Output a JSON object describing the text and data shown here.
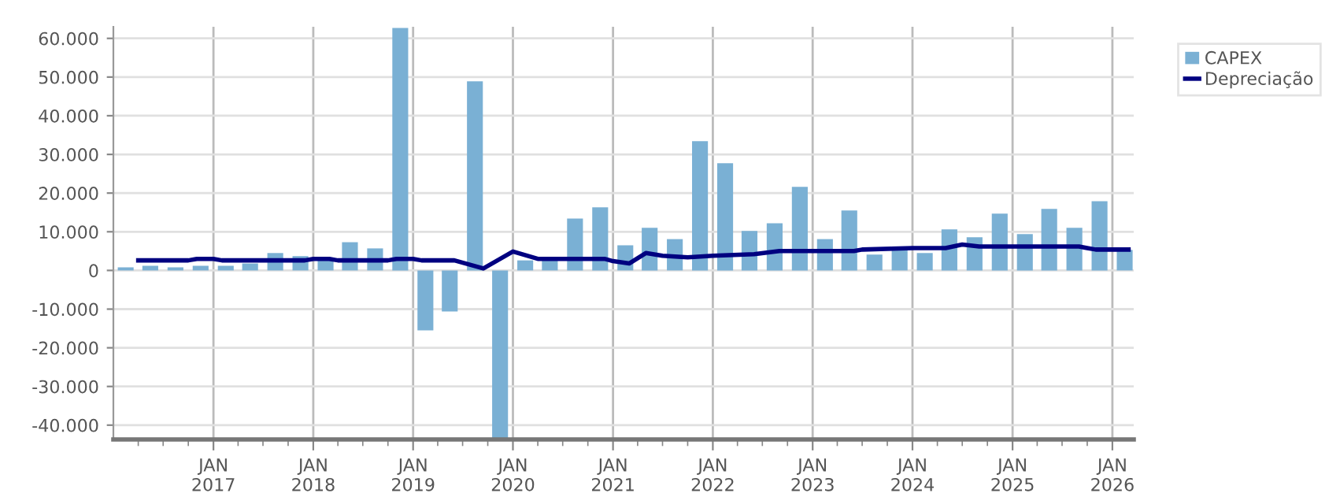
{
  "chart_data": {
    "type": "bar",
    "x": [
      "2016-02-15",
      "2016-05-15",
      "2016-08-15",
      "2016-11-15",
      "2017-02-15",
      "2017-05-15",
      "2017-08-15",
      "2017-11-15",
      "2018-02-15",
      "2018-05-15",
      "2018-08-15",
      "2018-11-15",
      "2019-02-15",
      "2019-05-15",
      "2019-08-15",
      "2019-11-15",
      "2020-02-15",
      "2020-05-15",
      "2020-08-15",
      "2020-11-15",
      "2021-02-15",
      "2021-05-15",
      "2021-08-15",
      "2021-11-15",
      "2022-02-15",
      "2022-05-15",
      "2022-08-15",
      "2022-11-15",
      "2023-02-15",
      "2023-05-15",
      "2023-08-15",
      "2023-11-15",
      "2024-02-15",
      "2024-05-15",
      "2024-08-15",
      "2024-11-15",
      "2025-02-15",
      "2025-05-15",
      "2025-08-15",
      "2025-11-15",
      "2026-02-15"
    ],
    "series": [
      {
        "name": "CAPEX",
        "color": "#7ab0d4",
        "values": [
          800,
          1200,
          800,
          1200,
          1200,
          1800,
          4500,
          3700,
          3000,
          7300,
          5700,
          62700,
          -15500,
          -10600,
          48900,
          -43700,
          2600,
          3000,
          13400,
          16300,
          6500,
          11000,
          8100,
          33400,
          27700,
          10200,
          12200,
          21600,
          8100,
          15500,
          4100,
          5300,
          4500,
          10600,
          8600,
          14700,
          9400,
          15900,
          11000,
          17900,
          5300
        ]
      },
      {
        "name": "Depreciação",
        "type": "line",
        "color": "#000080",
        "x": [
          "2016-04",
          "2016-10",
          "2016-11",
          "2017-01",
          "2017-02",
          "2017-12",
          "2018-01",
          "2018-03",
          "2018-04",
          "2018-10",
          "2018-11",
          "2019-01",
          "2019-02",
          "2019-06",
          "2019-09-15",
          "2020-01",
          "2020-04",
          "2020-12",
          "2021-01",
          "2021-03",
          "2021-05",
          "2021-07",
          "2021-10",
          "2022-01",
          "2022-06",
          "2022-09",
          "2023-06",
          "2023-07",
          "2024-01",
          "2024-05",
          "2024-07",
          "2024-09",
          "2025-09",
          "2025-10",
          "2025-11",
          "2026-03"
        ],
        "values": [
          2600,
          2600,
          3000,
          3000,
          2600,
          2600,
          3000,
          3000,
          2600,
          2600,
          3000,
          3000,
          2600,
          2600,
          500,
          4900,
          3000,
          3000,
          2400,
          1800,
          4500,
          3800,
          3400,
          3800,
          4200,
          5000,
          5000,
          5400,
          5800,
          5800,
          6700,
          6200,
          6200,
          5800,
          5400,
          5400
        ]
      }
    ],
    "xlim": [
      "2016-01",
      "2026-03-20"
    ],
    "xticks": [
      {
        "value": "2016-04",
        "label": null
      },
      {
        "value": "2016-07",
        "label": null
      },
      {
        "value": "2016-10",
        "label": null
      },
      {
        "value": "2017-01",
        "label": "JAN\n2017"
      },
      {
        "value": "2017-04",
        "label": null
      },
      {
        "value": "2017-07",
        "label": null
      },
      {
        "value": "2017-10",
        "label": null
      },
      {
        "value": "2018-01",
        "label": "JAN\n2018"
      },
      {
        "value": "2018-04",
        "label": null
      },
      {
        "value": "2018-07",
        "label": null
      },
      {
        "value": "2018-10",
        "label": null
      },
      {
        "value": "2019-01",
        "label": "JAN\n2019"
      },
      {
        "value": "2019-04",
        "label": null
      },
      {
        "value": "2019-07",
        "label": null
      },
      {
        "value": "2019-10",
        "label": null
      },
      {
        "value": "2020-01",
        "label": "JAN\n2020"
      },
      {
        "value": "2020-04",
        "label": null
      },
      {
        "value": "2020-07",
        "label": null
      },
      {
        "value": "2020-10",
        "label": null
      },
      {
        "value": "2021-01",
        "label": "JAN\n2021"
      },
      {
        "value": "2021-04",
        "label": null
      },
      {
        "value": "2021-07",
        "label": null
      },
      {
        "value": "2021-10",
        "label": null
      },
      {
        "value": "2022-01",
        "label": "JAN\n2022"
      },
      {
        "value": "2022-04",
        "label": null
      },
      {
        "value": "2022-07",
        "label": null
      },
      {
        "value": "2022-10",
        "label": null
      },
      {
        "value": "2023-01",
        "label": "JAN\n2023"
      },
      {
        "value": "2023-04",
        "label": null
      },
      {
        "value": "2023-07",
        "label": null
      },
      {
        "value": "2023-10",
        "label": null
      },
      {
        "value": "2024-01",
        "label": "JAN\n2024"
      },
      {
        "value": "2024-04",
        "label": null
      },
      {
        "value": "2024-07",
        "label": null
      },
      {
        "value": "2024-10",
        "label": null
      },
      {
        "value": "2025-01",
        "label": "JAN\n2025"
      },
      {
        "value": "2025-04",
        "label": null
      },
      {
        "value": "2025-07",
        "label": null
      },
      {
        "value": "2025-10",
        "label": null
      },
      {
        "value": "2026-01",
        "label": "JAN\n2026"
      }
    ],
    "ylim": [
      -43700,
      63000
    ],
    "yticks": [
      {
        "value": -40000,
        "label": "-40.000"
      },
      {
        "value": -30000,
        "label": "-30.000"
      },
      {
        "value": -20000,
        "label": "-20.000"
      },
      {
        "value": -10000,
        "label": "-10.000"
      },
      {
        "value": 0,
        "label": "0"
      },
      {
        "value": 10000,
        "label": "10.000"
      },
      {
        "value": 20000,
        "label": "20.000"
      },
      {
        "value": 30000,
        "label": "30.000"
      },
      {
        "value": 40000,
        "label": "40.000"
      },
      {
        "value": 50000,
        "label": "50.000"
      },
      {
        "value": 60000,
        "label": "60.000"
      }
    ],
    "grid": true,
    "legend": "top right"
  }
}
